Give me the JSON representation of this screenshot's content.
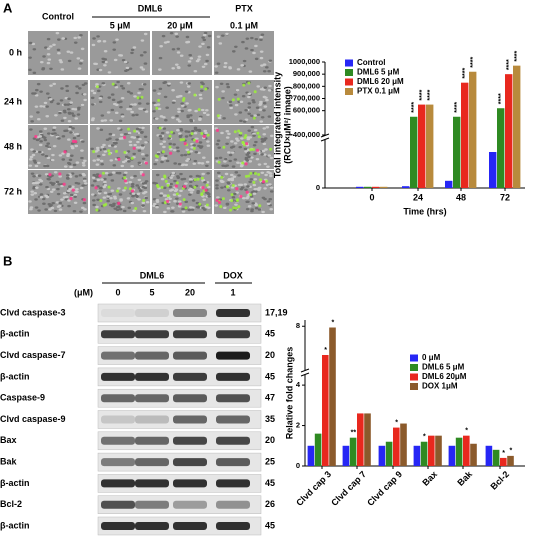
{
  "imaging": {
    "label": "A",
    "columns": [
      "Control",
      "DML6",
      "PTX"
    ],
    "doses": [
      "5 μM",
      "20 μM",
      "0.1 μM"
    ],
    "rows": [
      "0 h",
      "24 h",
      "48 h",
      "72 h"
    ]
  },
  "blot": {
    "label": "B",
    "groups": [
      "DML6",
      "DOX"
    ],
    "unit": "(μM)",
    "doses": [
      "0",
      "5",
      "20",
      "1"
    ],
    "rows": [
      {
        "name": "Clvd caspase-3",
        "kda": "17,19"
      },
      {
        "name": "β-actin",
        "kda": "45"
      },
      {
        "name": "Clvd caspase-7",
        "kda": "20"
      },
      {
        "name": "β-actin",
        "kda": "45"
      },
      {
        "name": "Caspase-9",
        "kda": "47"
      },
      {
        "name": "Clvd caspase-9",
        "kda": "35"
      },
      {
        "name": "Bax",
        "kda": "20"
      },
      {
        "name": "Bak",
        "kda": "25"
      },
      {
        "name": "β-actin",
        "kda": "45"
      },
      {
        "name": "Bcl-2",
        "kda": "26"
      },
      {
        "name": "β-actin",
        "kda": "45"
      }
    ]
  },
  "chart_data": [
    {
      "type": "bar",
      "ylabel": [
        "Total integrated intensity",
        "(RCU×µM²/ image)"
      ],
      "xlabel": "Time (hrs)",
      "categories": [
        "0",
        "24",
        "48",
        "72"
      ],
      "series": [
        {
          "name": "Control",
          "color": "#2626f5",
          "values": [
            2000,
            3000,
            12000,
            60000
          ],
          "significance": [
            null,
            null,
            null,
            null
          ]
        },
        {
          "name": "DML6  5 μM",
          "color": "#2f8a22",
          "values": [
            2000,
            550000,
            550000,
            620000
          ],
          "significance": [
            null,
            "****",
            "****",
            "****"
          ]
        },
        {
          "name": "DML6 20 μM",
          "color": "#e8281e",
          "values": [
            2000,
            650000,
            830000,
            900000
          ],
          "significance": [
            null,
            "****",
            "****",
            "****"
          ]
        },
        {
          "name": "PTX 0.1 μM",
          "color": "#b88a3c",
          "values": [
            2000,
            650000,
            920000,
            970000
          ],
          "significance": [
            null,
            "****",
            "****",
            "****"
          ]
        }
      ],
      "ylim": [
        0,
        1000000
      ],
      "axis_segments": [
        [
          0,
          80000
        ],
        [
          400000,
          1000000
        ]
      ],
      "yticks": [
        0,
        {
          "value": 400000,
          "label": "400,000"
        },
        {
          "value": 600000,
          "label": "600,000"
        },
        {
          "value": 700000,
          "label": "700,000"
        },
        {
          "value": 800000,
          "label": "800,000"
        },
        {
          "value": 900000,
          "label": "900,000"
        },
        {
          "value": 1000000,
          "label": "1000,000"
        }
      ],
      "legend": "upper left",
      "grid": false
    },
    {
      "type": "bar",
      "ylabel": "Relative fold changes",
      "categories": [
        "Clvd cap 3",
        "Clvd cap 7",
        "Clvd cap 9",
        "Bax",
        "Bak",
        "Bcl-2"
      ],
      "series": [
        {
          "name": "0 μM",
          "color": "#2626f5",
          "values": [
            1,
            1,
            1,
            1,
            1,
            1
          ],
          "significance": [
            null,
            null,
            null,
            null,
            null,
            null
          ]
        },
        {
          "name": "DML6 5 μM",
          "color": "#2f8a22",
          "values": [
            1.6,
            1.4,
            1.2,
            1.2,
            1.4,
            0.8
          ],
          "significance": [
            null,
            "**",
            null,
            "*",
            null,
            null
          ]
        },
        {
          "name": "DML6 20μM",
          "color": "#e8281e",
          "values": [
            5.7,
            2.6,
            1.9,
            1.5,
            1.5,
            0.4
          ],
          "significance": [
            "*",
            null,
            "*",
            null,
            "*",
            "*"
          ]
        },
        {
          "name": "DOX 1μM",
          "color": "#8b5a2b",
          "values": [
            7.9,
            2.6,
            2.1,
            1.5,
            1.1,
            0.5
          ],
          "significance": [
            "*",
            null,
            null,
            null,
            null,
            "*"
          ]
        }
      ],
      "ylim": [
        0,
        8.5
      ],
      "axis_segments": [
        [
          0,
          4.5
        ],
        [
          4.5,
          8.5
        ]
      ],
      "yticks": [
        0,
        2,
        4,
        8
      ],
      "legend": "upper right",
      "grid": false
    }
  ]
}
